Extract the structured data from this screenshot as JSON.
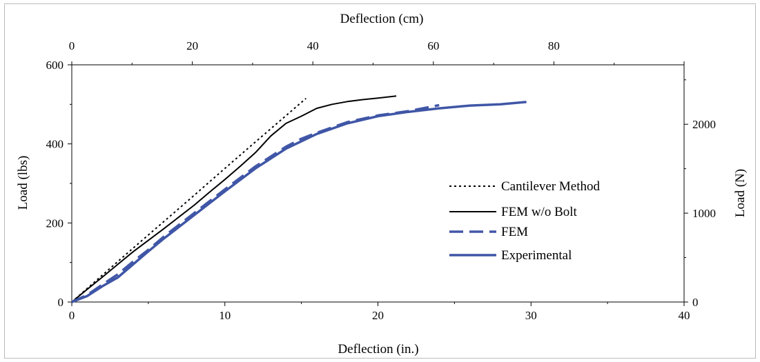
{
  "chart_data": {
    "type": "line",
    "title": "",
    "xlabel": "Deflection (in.)",
    "ylabel": "Load (lbs)",
    "x2label": "Deflection (cm)",
    "y2label": "Load (N)",
    "xlim": [
      0,
      40
    ],
    "ylim": [
      0,
      600
    ],
    "x2lim": [
      0,
      101.6
    ],
    "y2lim": [
      0,
      2668.9
    ],
    "x_ticks": [
      "0",
      "10",
      "20",
      "30",
      "40"
    ],
    "y_ticks": [
      "0",
      "200",
      "400",
      "600"
    ],
    "x2_ticks": [
      "0",
      "20",
      "40",
      "60",
      "80"
    ],
    "y2_ticks": [
      "0",
      "1000",
      "2000"
    ],
    "x2_tick_values": [
      0,
      20,
      40,
      60,
      80
    ],
    "y2_tick_values": [
      0,
      1000,
      2000
    ],
    "grid": false,
    "legend_position": "right-center",
    "series": [
      {
        "name": "Cantilever Method",
        "color": "#000000",
        "style": "dotted",
        "x": [
          0,
          2,
          4,
          6,
          8,
          10,
          12,
          13.5,
          15.3
        ],
        "y": [
          0,
          68,
          136,
          203,
          270,
          338,
          405,
          455,
          515
        ]
      },
      {
        "name": "FEM w/o Bolt",
        "color": "#000000",
        "style": "solid",
        "x": [
          0,
          1,
          2,
          3,
          4,
          5,
          6,
          7,
          8,
          9,
          10,
          11,
          12,
          13,
          14,
          15,
          16,
          17,
          18,
          19,
          20,
          21.2
        ],
        "y": [
          0,
          32,
          63,
          95,
          127,
          156,
          185,
          215,
          245,
          278,
          310,
          343,
          378,
          420,
          452,
          470,
          490,
          500,
          507,
          512,
          516,
          521
        ]
      },
      {
        "name": "FEM",
        "color": "#4257a8",
        "style": "dashed",
        "x": [
          0,
          1,
          2,
          3,
          4,
          5,
          6,
          8,
          10,
          12,
          14,
          15,
          16,
          18,
          20,
          22,
          24
        ],
        "y": [
          0,
          18,
          44,
          70,
          102,
          132,
          165,
          225,
          285,
          343,
          393,
          413,
          428,
          455,
          472,
          483,
          498
        ]
      },
      {
        "name": "Experimental",
        "color": "#3f56a6",
        "style": "solid",
        "x": [
          0,
          1,
          2,
          3,
          4,
          5,
          6,
          8,
          10,
          12,
          14,
          16,
          18,
          20,
          22,
          24,
          26,
          28,
          29.7
        ],
        "y": [
          0,
          15,
          40,
          62,
          95,
          128,
          160,
          220,
          280,
          338,
          388,
          425,
          452,
          470,
          481,
          490,
          497,
          500,
          506
        ]
      }
    ]
  }
}
